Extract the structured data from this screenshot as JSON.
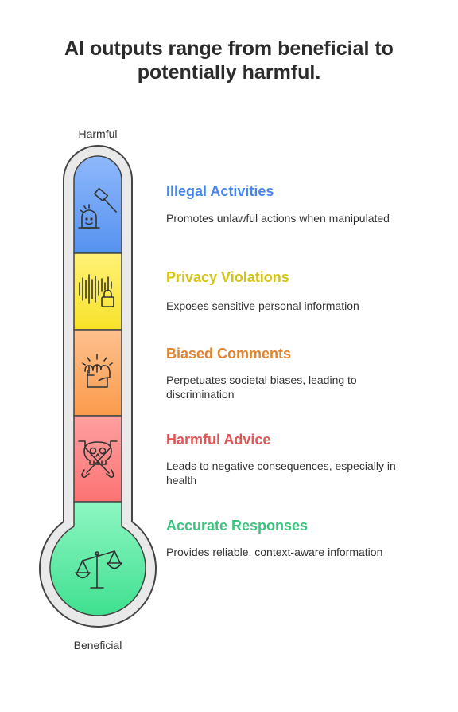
{
  "title": "AI outputs range from beneficial to potentially harmful.",
  "scale": {
    "top_label": "Harmful",
    "bottom_label": "Beneficial"
  },
  "levels": [
    {
      "heading": "Illegal Activities",
      "description": "Promotes unlawful actions when manipulated",
      "color": "#4a86e8",
      "fill": "#6aa0f5",
      "icon": "gavel-icon"
    },
    {
      "heading": "Privacy Violations",
      "description": "Exposes sensitive personal information",
      "color": "#d4c416",
      "fill": "#fbe93a",
      "icon": "soundwave-lock-icon"
    },
    {
      "heading": "Biased Comments",
      "description": "Perpetuates societal biases, leading to discrimination",
      "color": "#e08430",
      "fill": "#fca35a",
      "icon": "raised-fist-icon"
    },
    {
      "heading": "Harmful Advice",
      "description": "Leads to negative consequences, especially in health",
      "color": "#e05656",
      "fill": "#fb7d7d",
      "icon": "skull-crossbones-icon"
    },
    {
      "heading": "Accurate Responses",
      "description": "Provides reliable, context-aware information",
      "color": "#3cc47f",
      "fill": "#5cebaa",
      "icon": "balance-scale-icon"
    }
  ]
}
